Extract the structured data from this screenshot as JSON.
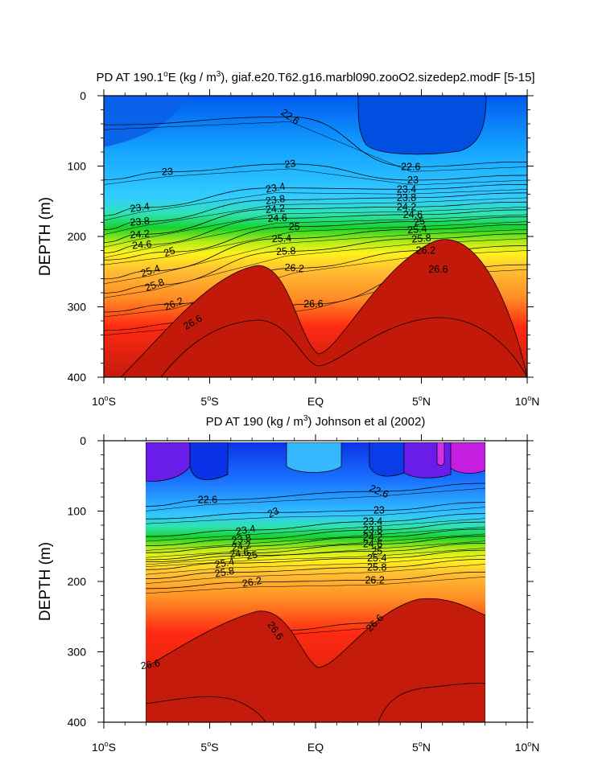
{
  "chart_data": [
    {
      "type": "contour",
      "title_prefix": "PD AT 190.1",
      "title_degree": "o",
      "title_mid": "E (kg / m",
      "title_sup": "3",
      "title_suffix": "), giaf.e20.T62.g16.marbl090.zooO2.sizedep2.modF [5-15]",
      "ylabel": "DEPTH (m)",
      "xlim": [
        -10,
        10
      ],
      "ylim": [
        0,
        400
      ],
      "y_inverted": true,
      "yticks": [
        "0",
        "100",
        "200",
        "300",
        "400"
      ],
      "xticks": [
        {
          "value": -10,
          "num": "10",
          "deg": "o",
          "hem": "S"
        },
        {
          "value": -5,
          "num": "5",
          "deg": "o",
          "hem": "S"
        },
        {
          "value": 0,
          "num": "EQ",
          "deg": "",
          "hem": ""
        },
        {
          "value": 5,
          "num": "5",
          "deg": "o",
          "hem": "N"
        },
        {
          "value": 10,
          "num": "10",
          "deg": "o",
          "hem": "N"
        }
      ],
      "data_x_extent": [
        -10,
        10
      ],
      "contour_labels": [
        {
          "text": "22.6",
          "lon": -1.2,
          "depth": 30,
          "angle": 35
        },
        {
          "text": "23",
          "lon": -7.0,
          "depth": 108,
          "angle": -3
        },
        {
          "text": "23",
          "lon": -1.2,
          "depth": 97,
          "angle": -8
        },
        {
          "text": "22.6",
          "lon": 4.5,
          "depth": 101,
          "angle": 0
        },
        {
          "text": "23",
          "lon": 4.6,
          "depth": 120,
          "angle": 0
        },
        {
          "text": "23.4",
          "lon": -8.3,
          "depth": 159,
          "angle": -8
        },
        {
          "text": "23.4",
          "lon": -1.9,
          "depth": 131,
          "angle": -10
        },
        {
          "text": "23.4",
          "lon": 4.3,
          "depth": 133,
          "angle": 0
        },
        {
          "text": "23.8",
          "lon": -8.3,
          "depth": 179,
          "angle": -5
        },
        {
          "text": "23.8",
          "lon": -1.9,
          "depth": 148,
          "angle": -8
        },
        {
          "text": "23.8",
          "lon": 4.3,
          "depth": 145,
          "angle": 0
        },
        {
          "text": "24.2",
          "lon": -8.3,
          "depth": 197,
          "angle": -5
        },
        {
          "text": "24.2",
          "lon": -1.9,
          "depth": 161,
          "angle": -5
        },
        {
          "text": "24.2",
          "lon": 4.3,
          "depth": 158,
          "angle": 0
        },
        {
          "text": "24.6",
          "lon": -8.2,
          "depth": 212,
          "angle": -5
        },
        {
          "text": "24.6",
          "lon": -1.8,
          "depth": 174,
          "angle": -3
        },
        {
          "text": "24.6",
          "lon": 4.6,
          "depth": 169,
          "angle": 0
        },
        {
          "text": "25",
          "lon": -6.9,
          "depth": 222,
          "angle": -18
        },
        {
          "text": "25",
          "lon": -1.0,
          "depth": 186,
          "angle": 0
        },
        {
          "text": "25",
          "lon": 4.9,
          "depth": 179,
          "angle": -10
        },
        {
          "text": "25.4",
          "lon": -7.8,
          "depth": 249,
          "angle": -18
        },
        {
          "text": "25.4",
          "lon": -1.6,
          "depth": 203,
          "angle": -3
        },
        {
          "text": "25.4",
          "lon": 4.8,
          "depth": 190,
          "angle": -5
        },
        {
          "text": "25.8",
          "lon": -7.6,
          "depth": 269,
          "angle": -20
        },
        {
          "text": "25.8",
          "lon": -1.4,
          "depth": 221,
          "angle": -3
        },
        {
          "text": "25.8",
          "lon": 5.0,
          "depth": 203,
          "angle": -5
        },
        {
          "text": "26.2",
          "lon": -6.7,
          "depth": 296,
          "angle": -22
        },
        {
          "text": "26.2",
          "lon": -1.0,
          "depth": 245,
          "angle": 5
        },
        {
          "text": "26.2",
          "lon": 5.2,
          "depth": 220,
          "angle": 0
        },
        {
          "text": "26.6",
          "lon": -5.8,
          "depth": 322,
          "angle": -30
        },
        {
          "text": "26.6",
          "lon": -0.1,
          "depth": 296,
          "angle": 0
        },
        {
          "text": "26.6",
          "lon": 5.8,
          "depth": 247,
          "angle": 0
        }
      ]
    },
    {
      "type": "contour",
      "title_prefix": "PD AT 190 (kg / m",
      "title_sup": "3",
      "title_suffix": ") Johnson et al (2002)",
      "ylabel": "DEPTH (m)",
      "xlim": [
        -10,
        10
      ],
      "ylim": [
        0,
        400
      ],
      "y_inverted": true,
      "yticks": [
        "0",
        "100",
        "200",
        "300",
        "400"
      ],
      "xticks": [
        {
          "value": -10,
          "num": "10",
          "deg": "o",
          "hem": "S"
        },
        {
          "value": -5,
          "num": "5",
          "deg": "o",
          "hem": "S"
        },
        {
          "value": 0,
          "num": "EQ",
          "deg": "",
          "hem": ""
        },
        {
          "value": 5,
          "num": "5",
          "deg": "o",
          "hem": "N"
        },
        {
          "value": 10,
          "num": "10",
          "deg": "o",
          "hem": "N"
        }
      ],
      "data_x_extent": [
        -8,
        8
      ],
      "contour_labels": [
        {
          "text": "22.6",
          "lon": -5.1,
          "depth": 84,
          "angle": 0
        },
        {
          "text": "22.6",
          "lon": 3.0,
          "depth": 72,
          "angle": 22
        },
        {
          "text": "23",
          "lon": -2.0,
          "depth": 102,
          "angle": -25
        },
        {
          "text": "23",
          "lon": 3.0,
          "depth": 99,
          "angle": 0
        },
        {
          "text": "23.4",
          "lon": -3.3,
          "depth": 127,
          "angle": -10
        },
        {
          "text": "23.4",
          "lon": 2.7,
          "depth": 115,
          "angle": 0
        },
        {
          "text": "23.8",
          "lon": -3.5,
          "depth": 140,
          "angle": -10
        },
        {
          "text": "23.8",
          "lon": 2.7,
          "depth": 127,
          "angle": 0
        },
        {
          "text": "24.2",
          "lon": -3.5,
          "depth": 150,
          "angle": -10
        },
        {
          "text": "24.2",
          "lon": 2.7,
          "depth": 137,
          "angle": 0
        },
        {
          "text": "24.6",
          "lon": -3.6,
          "depth": 160,
          "angle": -8
        },
        {
          "text": "24.6",
          "lon": 2.7,
          "depth": 147,
          "angle": 0
        },
        {
          "text": "25",
          "lon": -3.0,
          "depth": 163,
          "angle": -10
        },
        {
          "text": "25",
          "lon": 2.9,
          "depth": 157,
          "angle": 0
        },
        {
          "text": "25.4",
          "lon": -4.3,
          "depth": 174,
          "angle": -10
        },
        {
          "text": "25.4",
          "lon": 2.9,
          "depth": 167,
          "angle": 0
        },
        {
          "text": "25.8",
          "lon": -4.3,
          "depth": 187,
          "angle": -10
        },
        {
          "text": "25.8",
          "lon": 2.9,
          "depth": 180,
          "angle": 0
        },
        {
          "text": "26.2",
          "lon": -3.0,
          "depth": 201,
          "angle": -10
        },
        {
          "text": "26.2",
          "lon": 2.8,
          "depth": 198,
          "angle": 0
        },
        {
          "text": "26.6",
          "lon": -1.9,
          "depth": 270,
          "angle": 55
        },
        {
          "text": "26.6",
          "lon": 2.8,
          "depth": 259,
          "angle": -45
        },
        {
          "text": "26.6",
          "lon": -7.8,
          "depth": 318,
          "angle": -10
        }
      ]
    }
  ]
}
